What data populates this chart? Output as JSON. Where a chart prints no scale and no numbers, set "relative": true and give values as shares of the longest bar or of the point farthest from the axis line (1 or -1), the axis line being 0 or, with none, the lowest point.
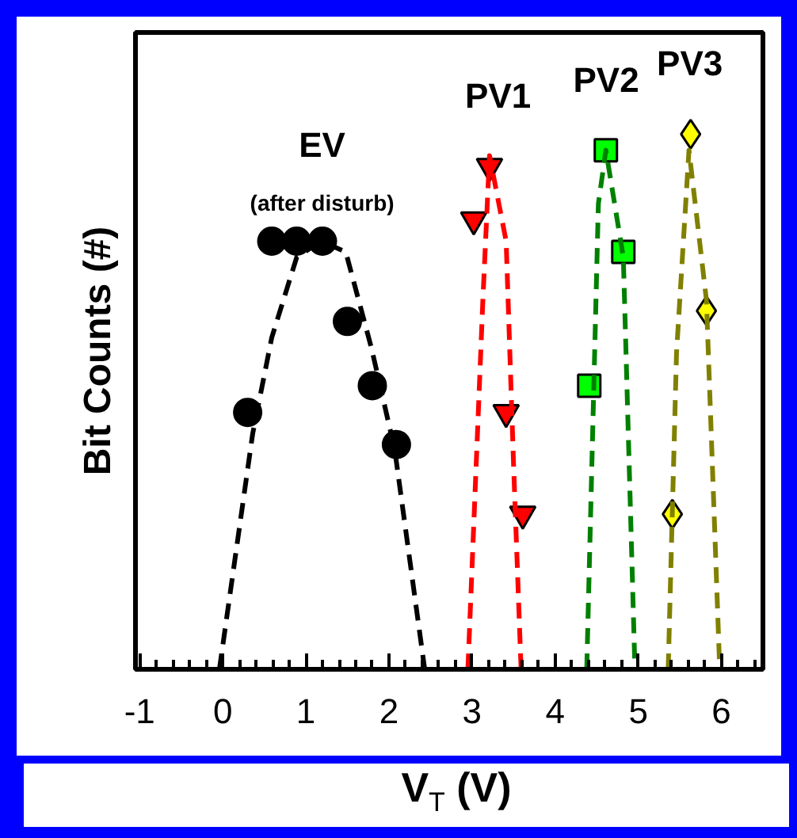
{
  "chart_data": {
    "type": "scatter",
    "xlabel": "V$_{T}$ (V)",
    "ylabel": "Bit Counts (#)",
    "relative": true,
    "xlim": [
      -1.05,
      6.5
    ],
    "xticks": [
      -1,
      0,
      1,
      2,
      3,
      4,
      5,
      6
    ],
    "grid": false,
    "annotations": [
      "(after disturb)"
    ],
    "series": [
      {
        "name": "EV",
        "marker": "circle",
        "color": "#000000",
        "x": [
          0.3,
          0.59,
          0.89,
          1.2,
          1.5,
          1.8,
          2.09
        ],
        "values": [
          0.48,
          0.8,
          0.8,
          0.8,
          0.65,
          0.53,
          0.42
        ]
      },
      {
        "type": "line",
        "line_style": "dashed",
        "color": "#000000",
        "x": [
          -0.04,
          0.36,
          0.59,
          0.89,
          1.18,
          1.48,
          1.79,
          2.07,
          2.43
        ],
        "values": [
          0,
          0.44,
          0.62,
          0.77,
          0.8,
          0.78,
          0.6,
          0.41,
          0
        ]
      },
      {
        "name": "PV1",
        "marker": "triangle",
        "color": "#ff0000",
        "x": [
          3.02,
          3.21,
          3.41,
          3.61
        ],
        "values": [
          0.84,
          0.94,
          0.48,
          0.29
        ]
      },
      {
        "type": "line",
        "line_style": "dashed",
        "color": "#ff0000",
        "x": [
          2.95,
          3.13,
          3.21,
          3.41,
          3.5,
          3.59
        ],
        "values": [
          0,
          0.69,
          0.96,
          0.8,
          0.38,
          0
        ]
      },
      {
        "name": "PV2",
        "marker": "square",
        "color": "#00ff00",
        "x": [
          4.41,
          4.61,
          4.82
        ],
        "values": [
          0.53,
          0.97,
          0.78
        ]
      },
      {
        "type": "line",
        "line_style": "dashed",
        "color": "#008000",
        "x": [
          4.38,
          4.52,
          4.61,
          4.82,
          4.96
        ],
        "values": [
          0,
          0.87,
          0.97,
          0.77,
          0
        ]
      },
      {
        "name": "PV3",
        "marker": "diamond",
        "color": "#ffff00",
        "x": [
          5.41,
          5.63,
          5.82
        ],
        "values": [
          0.29,
          1.0,
          0.67
        ]
      },
      {
        "type": "line",
        "line_style": "dashed",
        "color": "#808000",
        "x": [
          5.36,
          5.46,
          5.61,
          5.82,
          5.98
        ],
        "values": [
          0,
          0.59,
          0.97,
          0.69,
          0
        ]
      }
    ]
  }
}
